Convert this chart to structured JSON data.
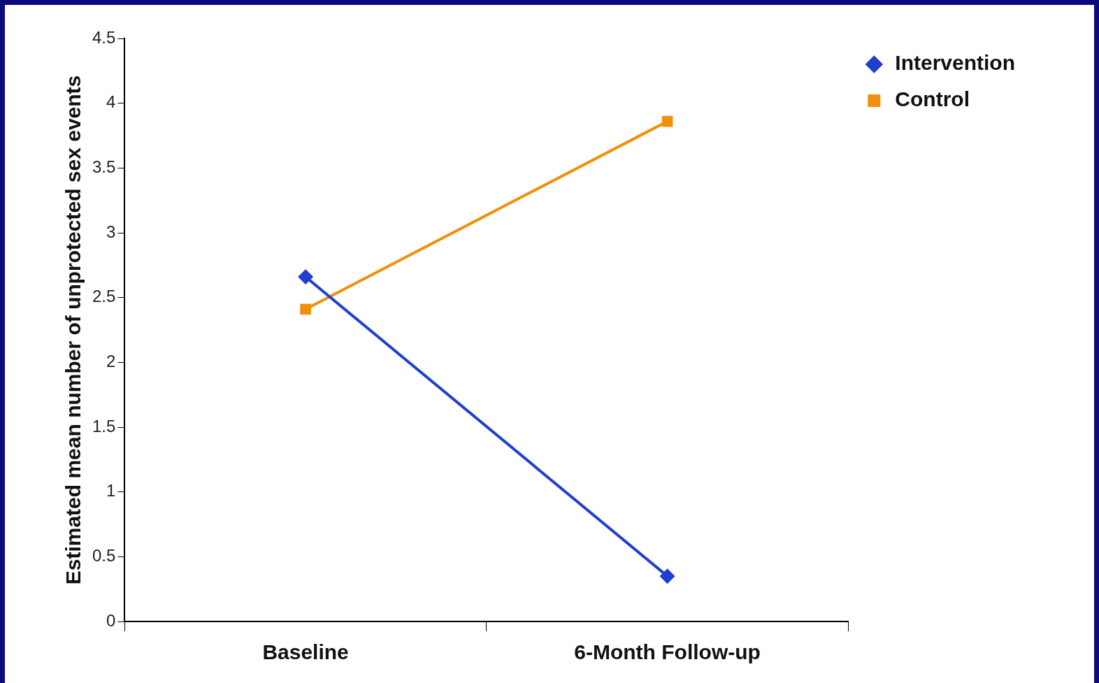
{
  "chart_data": {
    "type": "line",
    "ylabel": "Estimated mean number of unprotected sex events",
    "categories": [
      "Baseline",
      "6-Month Follow-up"
    ],
    "series": [
      {
        "name": "Intervention",
        "color": "#1f3fcf",
        "marker": "diamond",
        "values": [
          2.66,
          0.35
        ]
      },
      {
        "name": "Control",
        "color": "#f0900a",
        "marker": "square",
        "values": [
          2.41,
          3.86
        ]
      }
    ],
    "ylim": [
      0,
      4.5
    ],
    "yticks": [
      0,
      0.5,
      1,
      1.5,
      2,
      2.5,
      3,
      3.5,
      4,
      4.5
    ],
    "grid": false,
    "legend": "top right"
  }
}
